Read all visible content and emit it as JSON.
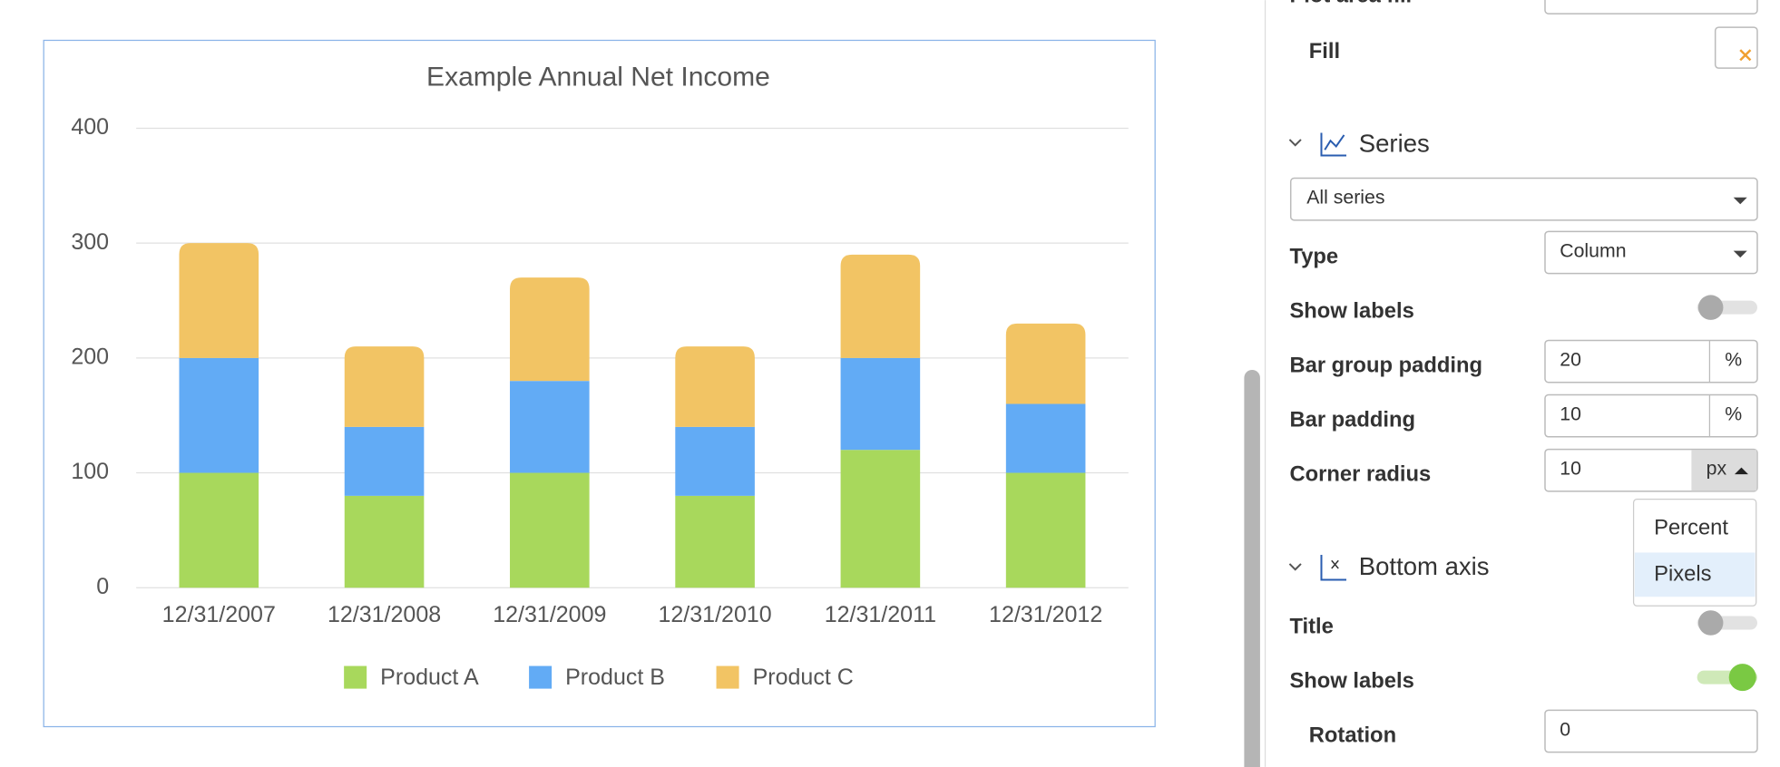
{
  "chart_data": {
    "type": "stacked-bar",
    "title": "Example Annual Net Income",
    "categories": [
      "12/31/2007",
      "12/31/2008",
      "12/31/2009",
      "12/31/2010",
      "12/31/2011",
      "12/31/2012"
    ],
    "series": [
      {
        "name": "Product A",
        "color": "#a8d85c",
        "values": [
          100,
          80,
          100,
          80,
          120,
          100
        ]
      },
      {
        "name": "Product B",
        "color": "#62abf5",
        "values": [
          100,
          60,
          80,
          60,
          80,
          60
        ]
      },
      {
        "name": "Product C",
        "color": "#f2c464",
        "values": [
          100,
          70,
          90,
          70,
          90,
          70
        ]
      }
    ],
    "ylim": [
      0,
      400
    ],
    "yticks": [
      0,
      100,
      200,
      300,
      400
    ],
    "grid": true,
    "legend": "bottom"
  },
  "panel": {
    "plot_area_fill": "Plot area fill",
    "fill": "Fill",
    "series_section": "Series",
    "series_select": "All series",
    "type_label": "Type",
    "type_value": "Column",
    "show_labels": "Show labels",
    "bar_group_padding": "Bar group padding",
    "bar_group_padding_value": "20",
    "bar_group_padding_unit": "%",
    "bar_padding": "Bar padding",
    "bar_padding_value": "10",
    "bar_padding_unit": "%",
    "corner_radius": "Corner radius",
    "corner_radius_value": "10",
    "corner_radius_unit": "px",
    "unit_options": [
      "Percent",
      "Pixels"
    ],
    "bottom_axis_section": "Bottom axis",
    "title_label": "Title",
    "axis_show_labels": "Show labels",
    "rotation": "Rotation",
    "rotation_value": "0"
  }
}
